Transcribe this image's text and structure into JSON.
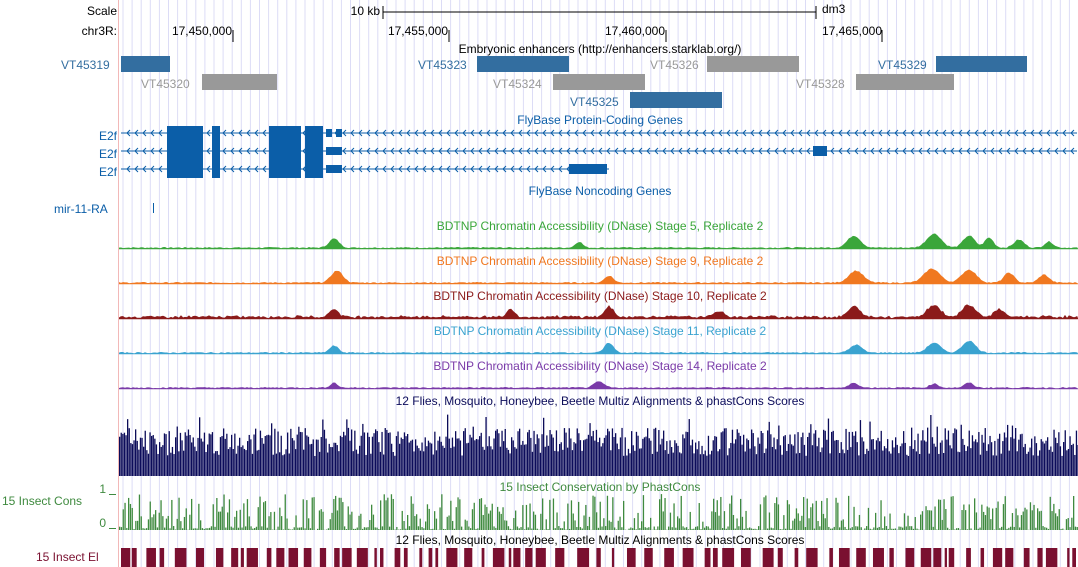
{
  "header": {
    "scale_label": "Scale",
    "chrom_label": "chr3R:",
    "scalebar_label": "10 kb",
    "assembly": "dm3",
    "ticks": [
      "17,450,000",
      "17,455,000",
      "17,460,000",
      "17,465,000"
    ]
  },
  "enhancers": {
    "title": "Embryonic enhancers (http://enhancers.starklab.org/)",
    "items": [
      {
        "name": "VT45319",
        "color": "#336ea0"
      },
      {
        "name": "VT45320",
        "color": "#999999"
      },
      {
        "name": "VT45323",
        "color": "#336ea0"
      },
      {
        "name": "VT45324",
        "color": "#999999"
      },
      {
        "name": "VT45326",
        "color": "#999999"
      },
      {
        "name": "VT45325",
        "color": "#336ea0"
      },
      {
        "name": "VT45329",
        "color": "#336ea0"
      },
      {
        "name": "VT45328",
        "color": "#999999"
      }
    ]
  },
  "protein_genes": {
    "title": "FlyBase Protein-Coding Genes",
    "genes": [
      "E2f",
      "E2f",
      "E2f"
    ],
    "color": "#0b5ea8"
  },
  "noncoding": {
    "title": "FlyBase Noncoding Genes",
    "gene": "mir-11-RA"
  },
  "dnase": [
    {
      "title": "BDTNP Chromatin Accessibility (DNase) Stage 5, Replicate 2",
      "color": "#3aa63a"
    },
    {
      "title": "BDTNP Chromatin Accessibility (DNase) Stage 9, Replicate 2",
      "color": "#f07820"
    },
    {
      "title": "BDTNP Chromatin Accessibility (DNase) Stage 10, Replicate 2",
      "color": "#8b1a1a"
    },
    {
      "title": "BDTNP Chromatin Accessibility (DNase) Stage 11, Replicate 2",
      "color": "#3aa3d0"
    },
    {
      "title": "BDTNP Chromatin Accessibility (DNase) Stage 14, Replicate 2",
      "color": "#7a3aa8"
    }
  ],
  "multiz": {
    "title": "12 Flies, Mosquito, Honeybee, Beetle Multiz Alignments & phastCons Scores",
    "color": "#0c0c5a"
  },
  "phastcons": {
    "title": "15 Insect Conservation by PhastCons",
    "label": "15 Insect Cons",
    "y_max": "1",
    "y_min": "0",
    "color": "#3f8a3f"
  },
  "elements": {
    "title": "12 Flies, Mosquito, Honeybee, Beetle Multiz Alignments & phastCons Scores",
    "label": "15 Insect El",
    "color": "#7a1030"
  }
}
